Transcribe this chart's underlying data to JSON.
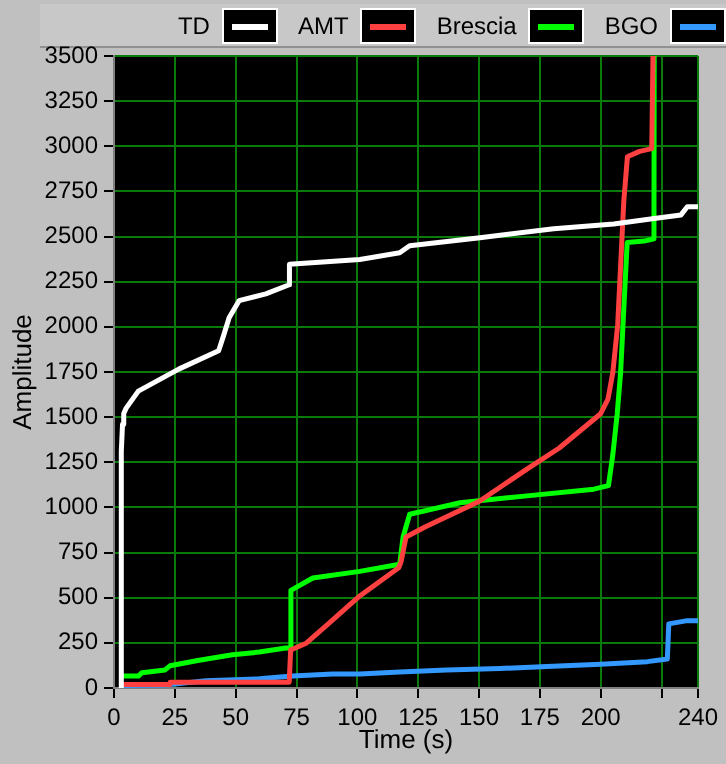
{
  "chart_data": {
    "type": "line",
    "xlabel": "Time (s)",
    "ylabel": "Amplitude",
    "xlim": [
      0,
      240
    ],
    "ylim": [
      0,
      3500
    ],
    "xticks": [
      0,
      25,
      50,
      75,
      100,
      125,
      150,
      175,
      200,
      {
        "value": 225,
        "label": null
      },
      240
    ],
    "yticks": [
      0,
      250,
      500,
      750,
      1000,
      1250,
      1500,
      1750,
      2000,
      2250,
      2500,
      2750,
      3000,
      3250,
      3500
    ],
    "grid": true,
    "legend": "top",
    "marker": "none",
    "line_style": "solid",
    "series": [
      {
        "name": "TD",
        "color": "#ffffff",
        "x": [
          3,
          3,
          3.5,
          4,
          5,
          10,
          26.6,
          43,
          45,
          47.3,
          51.4,
          62.4,
          72,
          72.1,
          101,
          117.4,
          121.5,
          150.4,
          180.7,
          205.4,
          222,
          233,
          235.6,
          240
        ],
        "values": [
          0,
          1310,
          1460,
          1520,
          1550,
          1644,
          1766,
          1868,
          1950,
          2050,
          2145,
          2183,
          2233,
          2347,
          2373,
          2410,
          2449,
          2494,
          2543,
          2570,
          2600,
          2620,
          2665,
          2665
        ]
      },
      {
        "name": "AMT",
        "color": "#ff4040",
        "x": [
          3,
          23,
          23.1,
          72,
          72.6,
          79,
          87,
          101,
          117,
          118,
          120,
          128,
          150,
          170,
          183,
          200,
          203,
          205,
          207,
          209.5,
          211,
          216,
          221,
          221.5
        ],
        "values": [
          20,
          20,
          32,
          32,
          210,
          248,
          343,
          510,
          666,
          700,
          836,
          893,
          1033,
          1215,
          1329,
          1519,
          1600,
          1747,
          2012,
          2695,
          2942,
          2972,
          2987,
          3500
        ]
      },
      {
        "name": "Brescia",
        "color": "#00ff00",
        "x": [
          3,
          10,
          11.5,
          21,
          23,
          35,
          48.7,
          59.7,
          70.6,
          72.6,
          72.7,
          81.7,
          101,
          117.4,
          118.8,
          121.5,
          142.2,
          169.7,
          197.2,
          203.2,
          205,
          206.8,
          208.2,
          209.6,
          210.9,
          217.8,
          221.9,
          222
        ],
        "values": [
          66,
          66,
          85,
          100,
          123,
          154,
          184,
          199,
          222,
          222,
          541,
          609,
          646,
          685,
          836,
          962,
          1026,
          1064,
          1101,
          1121,
          1292,
          1519,
          1747,
          2126,
          2467,
          2475,
          2487,
          3500
        ]
      },
      {
        "name": "BGO",
        "color": "#3399ff",
        "x": [
          3,
          21,
          37.6,
          59.7,
          73.4,
          89.9,
          101,
          117.4,
          136.6,
          158.7,
          177.9,
          199.9,
          219.2,
          227.4,
          228,
          235.6,
          240
        ],
        "values": [
          14,
          16,
          40,
          51,
          66,
          77,
          77,
          89,
          100,
          108,
          119,
          131,
          146,
          161,
          355,
          373,
          373
        ]
      }
    ]
  }
}
